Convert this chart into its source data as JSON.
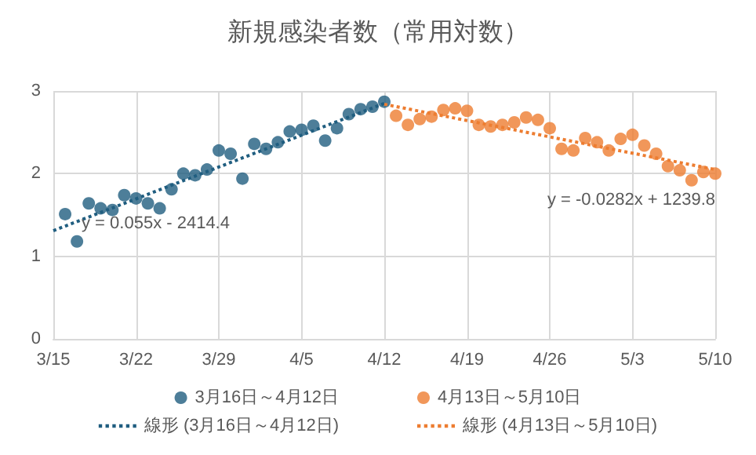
{
  "chart_data": {
    "type": "scatter",
    "title": "新規感染者数（常用対数）",
    "xlim": [
      "--03-15",
      "--05-10"
    ],
    "xticks": [
      {
        "value": "--03-15",
        "label": "3/15"
      },
      {
        "value": "--03-22",
        "label": "3/22"
      },
      {
        "value": "--03-29",
        "label": "3/29"
      },
      {
        "value": "--04-05",
        "label": "4/5"
      },
      {
        "value": "--04-12",
        "label": "4/12"
      },
      {
        "value": "--04-19",
        "label": "4/19"
      },
      {
        "value": "--04-26",
        "label": "4/26"
      },
      {
        "value": "--05-03",
        "label": "5/3"
      },
      {
        "value": "--05-10",
        "label": "5/10"
      }
    ],
    "ylim": [
      0,
      3
    ],
    "yticks": [
      0,
      1,
      2,
      3
    ],
    "grid": true,
    "legend": "bottom",
    "marker": "circle",
    "series": [
      {
        "name": "3月16日～4月12日",
        "color": "#205e80",
        "x": [
          "--03-16",
          "--03-17",
          "--03-18",
          "--03-19",
          "--03-20",
          "--03-21",
          "--03-22",
          "--03-23",
          "--03-24",
          "--03-25",
          "--03-26",
          "--03-27",
          "--03-28",
          "--03-29",
          "--03-30",
          "--03-31",
          "--04-01",
          "--04-02",
          "--04-03",
          "--04-04",
          "--04-05",
          "--04-06",
          "--04-07",
          "--04-08",
          "--04-09",
          "--04-10",
          "--04-11",
          "--04-12"
        ],
        "values": [
          1.51,
          1.18,
          1.64,
          1.58,
          1.56,
          1.74,
          1.7,
          1.64,
          1.58,
          1.81,
          2.0,
          1.98,
          2.05,
          2.28,
          2.24,
          1.94,
          2.36,
          2.3,
          2.38,
          2.51,
          2.53,
          2.58,
          2.4,
          2.55,
          2.72,
          2.78,
          2.81,
          2.87
        ]
      },
      {
        "name": "4月13日～5月10日",
        "color": "#ed7d31",
        "x": [
          "--04-13",
          "--04-14",
          "--04-15",
          "--04-16",
          "--04-17",
          "--04-18",
          "--04-19",
          "--04-20",
          "--04-21",
          "--04-22",
          "--04-23",
          "--04-24",
          "--04-25",
          "--04-26",
          "--04-27",
          "--04-28",
          "--04-29",
          "--04-30",
          "--05-01",
          "--05-02",
          "--05-03",
          "--05-04",
          "--05-05",
          "--05-06",
          "--05-07",
          "--05-08",
          "--05-09",
          "--05-10"
        ],
        "values": [
          2.7,
          2.59,
          2.66,
          2.69,
          2.77,
          2.79,
          2.76,
          2.59,
          2.57,
          2.59,
          2.62,
          2.68,
          2.65,
          2.55,
          2.3,
          2.28,
          2.43,
          2.38,
          2.28,
          2.42,
          2.47,
          2.34,
          2.24,
          2.09,
          2.04,
          1.92,
          2.02,
          2.0
        ]
      },
      {
        "name": "線形 (3月16日～4月12日)",
        "type": "line",
        "color": "#205e80",
        "line_style": "dotted",
        "marker": "none",
        "x": [
          "--03-15",
          "--04-12"
        ],
        "values": [
          1.31,
          2.85
        ]
      },
      {
        "name": "線形 (4月13日～5月10日)",
        "type": "line",
        "color": "#ed7d31",
        "line_style": "dotted",
        "marker": "none",
        "x": [
          "--04-12",
          "--05-10"
        ],
        "values": [
          2.84,
          2.05
        ]
      }
    ],
    "annotations": [
      "y = 0.055x - 2414.4",
      "y = -0.0282x + 1239.8"
    ]
  }
}
